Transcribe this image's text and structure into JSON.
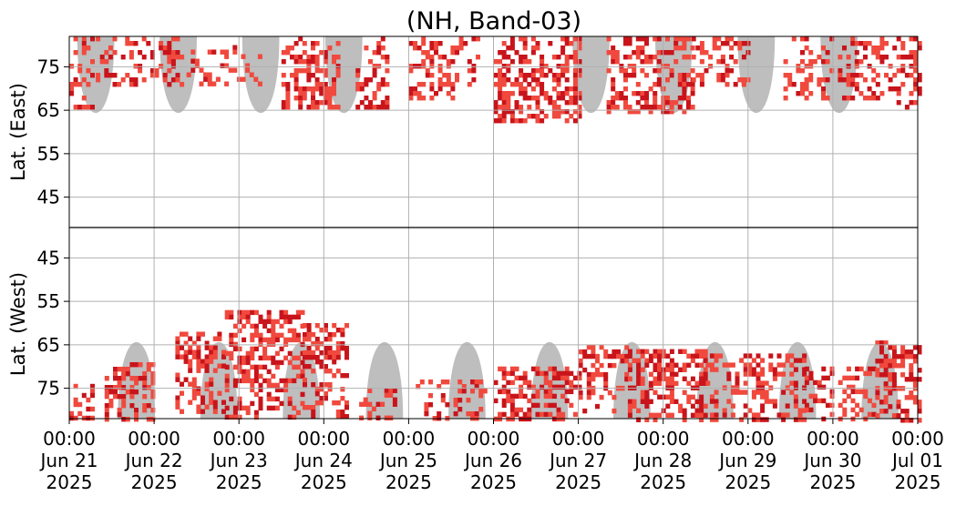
{
  "chart_data": {
    "type": "heatmap",
    "title": "(NH, Band-03)",
    "colors": {
      "background": "#ffffff",
      "daylight": "#bebebe",
      "intensity_low": "#f0493e",
      "intensity_high": "#c8141b",
      "grid": "#b0b0b0",
      "divider": "#000000"
    },
    "grid": true,
    "x_axis": {
      "range": [
        "2025-06-21 00:00",
        "2025-07-01 00:00"
      ],
      "ticks": [
        {
          "time": "00:00",
          "date": "Jun 21",
          "year": "2025"
        },
        {
          "time": "00:00",
          "date": "Jun 22",
          "year": "2025"
        },
        {
          "time": "00:00",
          "date": "Jun 23",
          "year": "2025"
        },
        {
          "time": "00:00",
          "date": "Jun 24",
          "year": "2025"
        },
        {
          "time": "00:00",
          "date": "Jun 25",
          "year": "2025"
        },
        {
          "time": "00:00",
          "date": "Jun 26",
          "year": "2025"
        },
        {
          "time": "00:00",
          "date": "Jun 27",
          "year": "2025"
        },
        {
          "time": "00:00",
          "date": "Jun 28",
          "year": "2025"
        },
        {
          "time": "00:00",
          "date": "Jun 29",
          "year": "2025"
        },
        {
          "time": "00:00",
          "date": "Jun 30",
          "year": "2025"
        },
        {
          "time": "00:00",
          "date": "Jul 01",
          "year": "2025"
        }
      ]
    },
    "panels": [
      {
        "name": "east",
        "ylabel": "Lat. (East)",
        "ylim": [
          38,
          82
        ],
        "yticks": [
          45,
          55,
          65,
          75
        ],
        "daylight_tips": [
          "2025-06-21 07:30",
          "2025-06-22 06:50",
          "2025-06-23 06:10",
          "2025-06-24 05:40",
          "2025-06-27 03:35",
          "2025-06-28 03:00",
          "2025-06-29 02:20",
          "2025-06-30 01:45"
        ],
        "activity_segments": [
          {
            "start": "2025-06-21 00:00",
            "end": "2025-06-21 06:00",
            "lat_min": 66,
            "lat_max": 82,
            "intensity": 0.6
          },
          {
            "start": "2025-06-21 07:30",
            "end": "2025-06-22 08:00",
            "lat_min": 71,
            "lat_max": 82,
            "intensity": 0.65
          },
          {
            "start": "2025-06-22 08:00",
            "end": "2025-06-23 06:00",
            "lat_min": 71,
            "lat_max": 80,
            "intensity": 0.45
          },
          {
            "start": "2025-06-23 12:00",
            "end": "2025-06-24 04:00",
            "lat_min": 66,
            "lat_max": 82,
            "intensity": 0.75
          },
          {
            "start": "2025-06-24 09:00",
            "end": "2025-06-24 18:00",
            "lat_min": 66,
            "lat_max": 82,
            "intensity": 0.75
          },
          {
            "start": "2025-06-25 00:00",
            "end": "2025-06-25 20:00",
            "lat_min": 68,
            "lat_max": 82,
            "intensity": 0.6
          },
          {
            "start": "2025-06-26 00:00",
            "end": "2025-06-27 00:00",
            "lat_min": 63,
            "lat_max": 82,
            "intensity": 0.8
          },
          {
            "start": "2025-06-27 08:00",
            "end": "2025-06-28 08:00",
            "lat_min": 65,
            "lat_max": 82,
            "intensity": 0.8
          },
          {
            "start": "2025-06-28 08:00",
            "end": "2025-06-29 00:00",
            "lat_min": 71,
            "lat_max": 82,
            "intensity": 0.7
          },
          {
            "start": "2025-06-29 10:00",
            "end": "2025-06-30 18:00",
            "lat_min": 68,
            "lat_max": 82,
            "intensity": 0.55
          },
          {
            "start": "2025-06-30 18:00",
            "end": "2025-07-01 00:00",
            "lat_min": 66,
            "lat_max": 82,
            "intensity": 0.7
          }
        ]
      },
      {
        "name": "west",
        "ylabel": "Lat. (West)",
        "ylim": [
          38,
          82
        ],
        "yticks": [
          45,
          55,
          65,
          75
        ],
        "daylight_tips": [
          "2025-06-21 19:00",
          "2025-06-22 18:20",
          "2025-06-23 17:40",
          "2025-06-24 17:10",
          "2025-06-25 16:30",
          "2025-06-26 15:50",
          "2025-06-27 15:10",
          "2025-06-28 14:40",
          "2025-06-29 14:00",
          "2025-06-30 13:20"
        ],
        "activity_segments": [
          {
            "start": "2025-06-21 00:00",
            "end": "2025-06-21 08:00",
            "lat_min": 74,
            "lat_max": 82,
            "intensity": 0.6
          },
          {
            "start": "2025-06-21 10:00",
            "end": "2025-06-22 00:00",
            "lat_min": 69,
            "lat_max": 82,
            "intensity": 0.85
          },
          {
            "start": "2025-06-22 06:00",
            "end": "2025-06-22 20:00",
            "lat_min": 62,
            "lat_max": 80,
            "intensity": 0.6
          },
          {
            "start": "2025-06-22 20:00",
            "end": "2025-06-23 18:00",
            "lat_min": 57,
            "lat_max": 82,
            "intensity": 0.7
          },
          {
            "start": "2025-06-23 18:00",
            "end": "2025-06-24 06:00",
            "lat_min": 60,
            "lat_max": 82,
            "intensity": 0.75
          },
          {
            "start": "2025-06-24 10:00",
            "end": "2025-06-24 20:00",
            "lat_min": 75,
            "lat_max": 82,
            "intensity": 0.6
          },
          {
            "start": "2025-06-25 02:00",
            "end": "2025-06-25 22:00",
            "lat_min": 73,
            "lat_max": 82,
            "intensity": 0.5
          },
          {
            "start": "2025-06-26 00:00",
            "end": "2025-06-27 00:00",
            "lat_min": 70,
            "lat_max": 82,
            "intensity": 0.8
          },
          {
            "start": "2025-06-27 00:00",
            "end": "2025-06-27 14:00",
            "lat_min": 65,
            "lat_max": 80,
            "intensity": 0.65
          },
          {
            "start": "2025-06-27 14:00",
            "end": "2025-06-28 12:00",
            "lat_min": 66,
            "lat_max": 82,
            "intensity": 0.8
          },
          {
            "start": "2025-06-28 12:00",
            "end": "2025-06-29 16:00",
            "lat_min": 67,
            "lat_max": 82,
            "intensity": 0.6
          },
          {
            "start": "2025-06-29 16:00",
            "end": "2025-06-30 12:00",
            "lat_min": 70,
            "lat_max": 82,
            "intensity": 0.6
          },
          {
            "start": "2025-06-30 12:00",
            "end": "2025-07-01 00:00",
            "lat_min": 64,
            "lat_max": 82,
            "intensity": 0.8
          }
        ]
      }
    ]
  }
}
